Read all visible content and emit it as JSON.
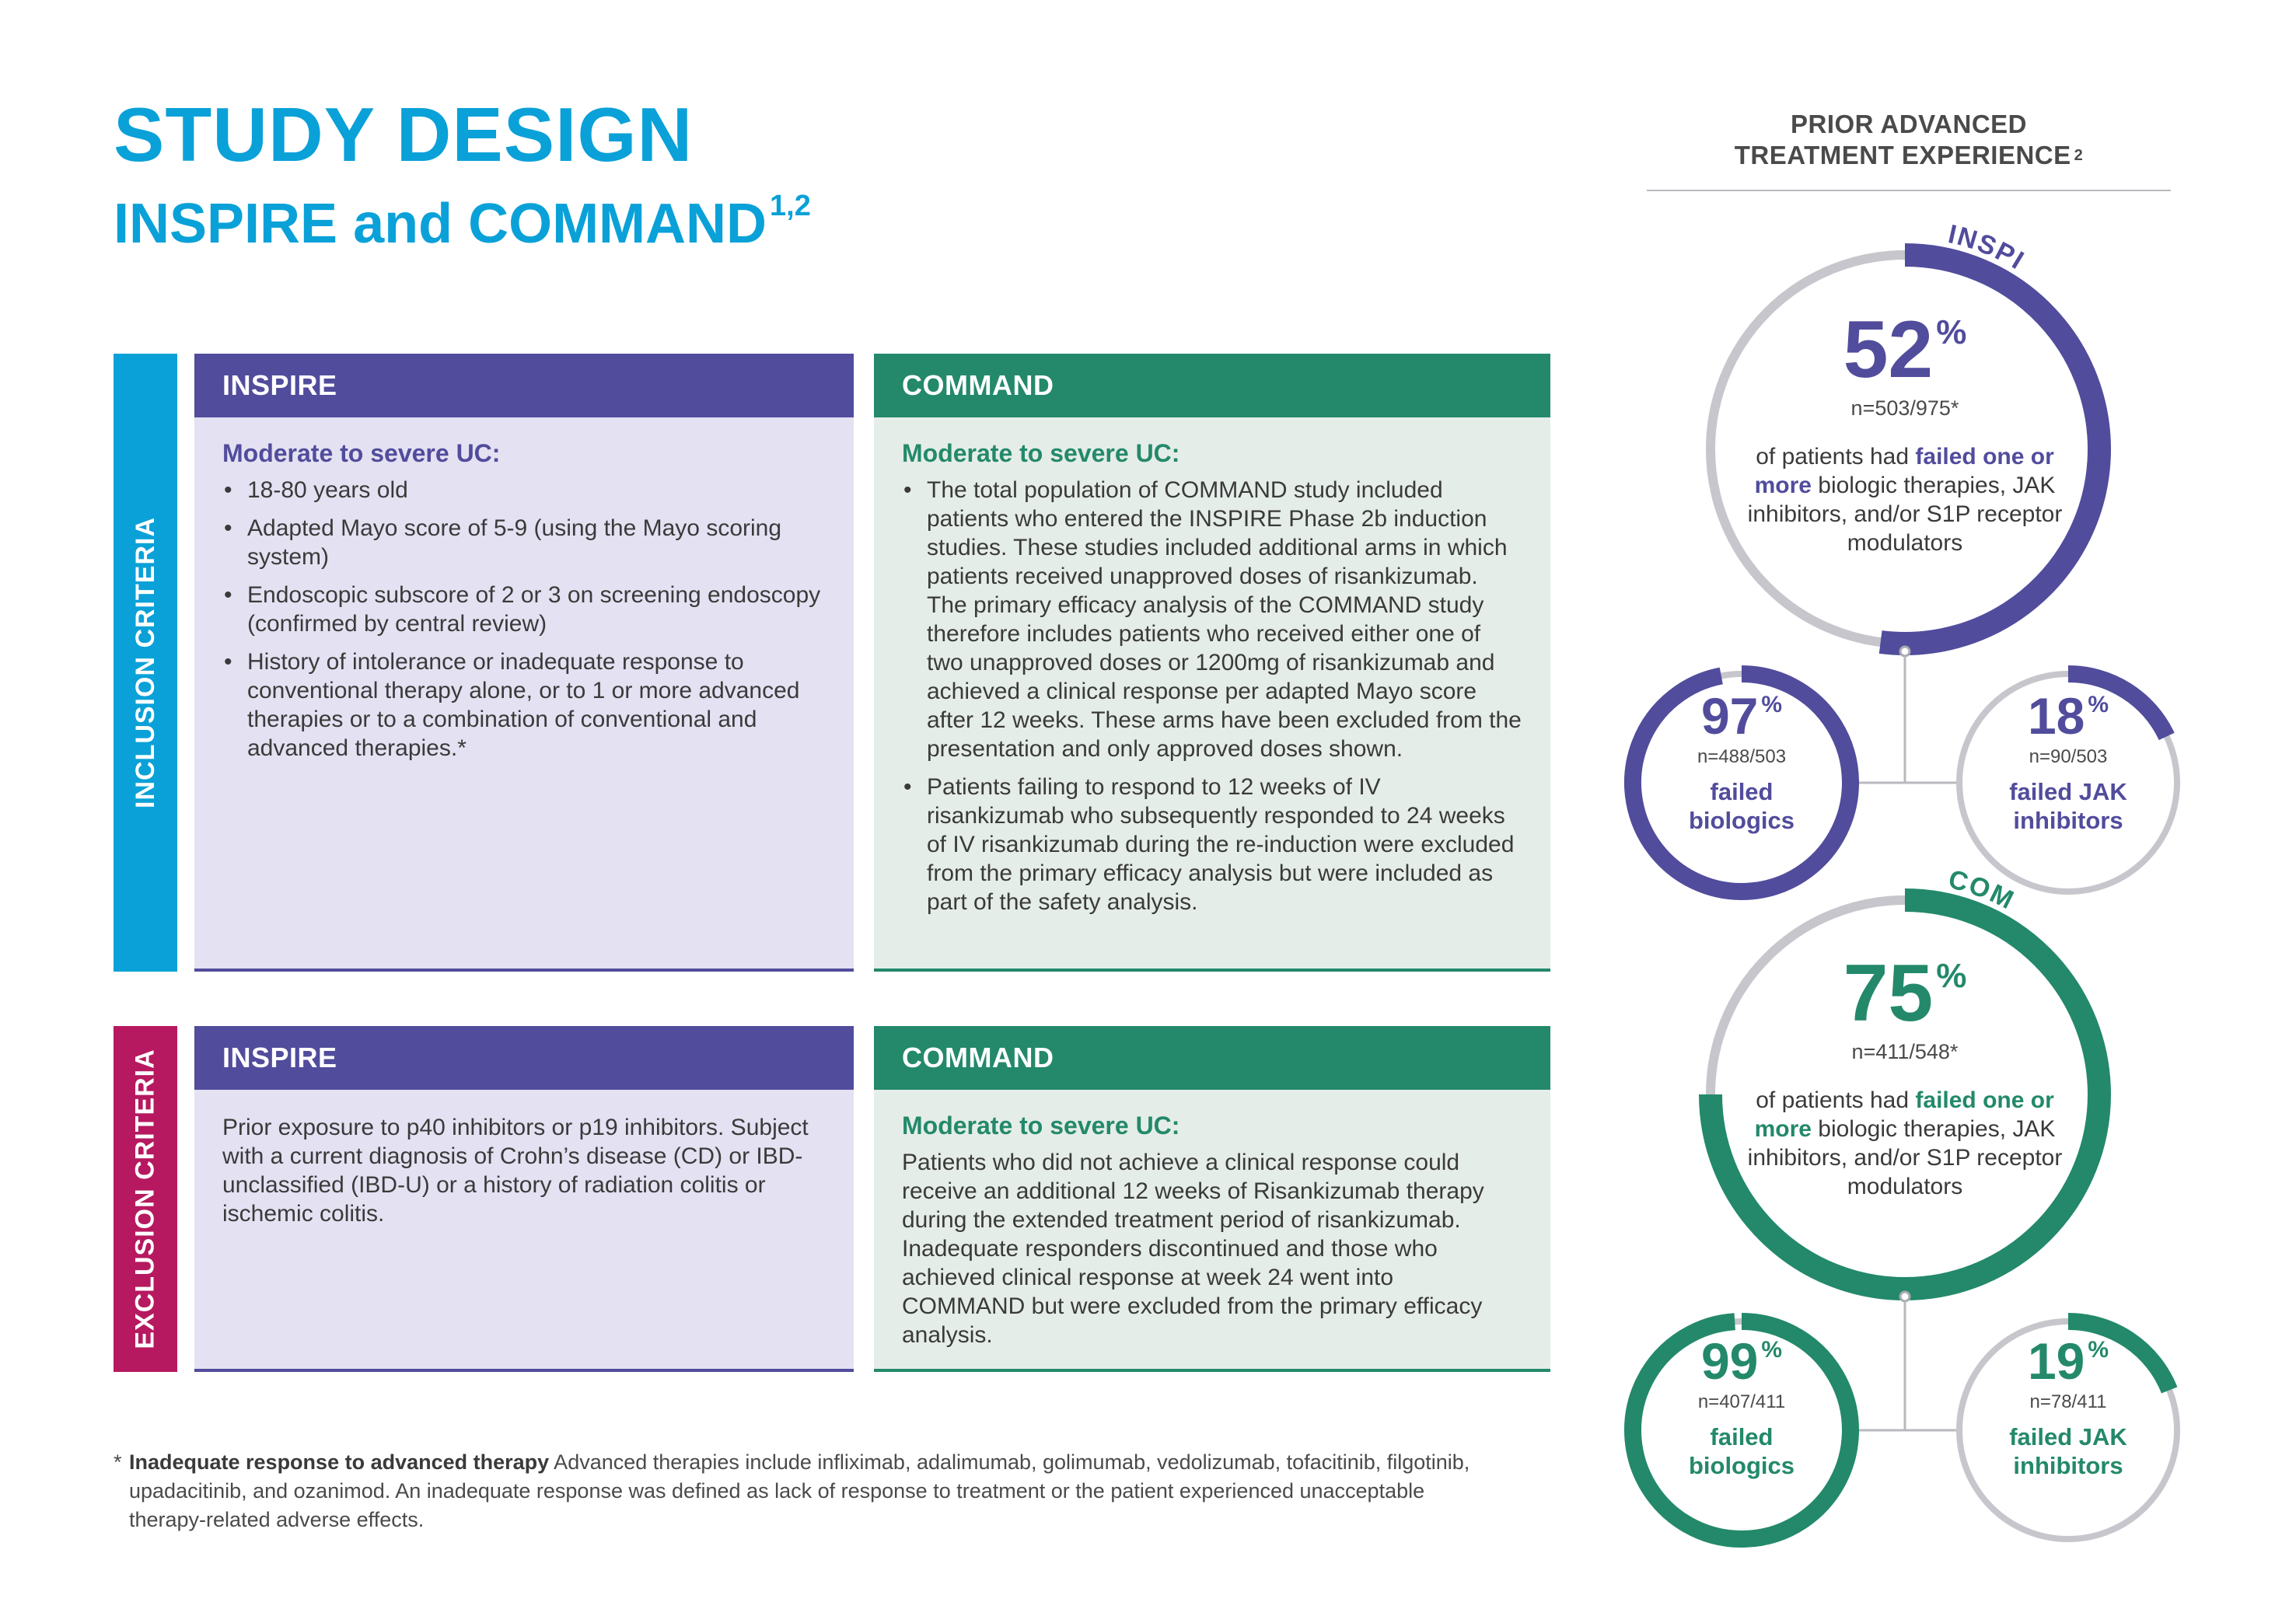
{
  "header": {
    "title": "STUDY DESIGN",
    "subtitle": "INSPIRE and COMMAND",
    "subtitle_refs": "1,2"
  },
  "inclusion": {
    "label": "INCLUSION CRITERIA",
    "inspire": {
      "head": "INSPIRE",
      "subhead": "Moderate to severe UC:",
      "bullets": [
        "18-80 years old",
        "Adapted Mayo score of 5-9 (using the Mayo scoring system)",
        "Endoscopic subscore of 2 or 3 on screening endoscopy (confirmed by central review)",
        "History of intolerance or inadequate response to conventional therapy alone, or to 1 or more advanced therapies or to a combination of conventional and advanced therapies.*"
      ]
    },
    "command": {
      "head": "COMMAND",
      "subhead": "Moderate to severe UC:",
      "bullets": [
        "The total population of COMMAND study included patients who entered the INSPIRE Phase 2b induction studies. These studies included additional arms in which patients received unapproved doses of risankizumab. The primary efficacy analysis of the COMMAND study therefore includes patients who received either one of two unapproved doses or 1200mg of risankizumab and achieved a clinical response per adapted Mayo score after 12 weeks. These arms have been excluded from the presentation and only approved doses shown.",
        "Patients failing to respond to 12 weeks of IV risankizumab who subsequently responded to 24 weeks of IV risankizumab during the re-induction were excluded from the primary efficacy analysis but were included as part of the safety analysis."
      ]
    }
  },
  "exclusion": {
    "label": "EXCLUSION CRITERIA",
    "inspire": {
      "head": "INSPIRE",
      "text": "Prior exposure to p40 inhibitors or p19 inhibitors. Subject with a current diagnosis of Crohn’s disease (CD) or IBD-unclassified (IBD-U) or a history of radiation colitis or ischemic colitis."
    },
    "command": {
      "head": "COMMAND",
      "subhead": "Moderate to severe UC:",
      "text": "Patients who did not achieve a clinical response could receive an additional 12 weeks of Risankizumab therapy during the extended treatment period of risankizumab. Inadequate responders discontinued and those who achieved clinical response at week 24 went into COMMAND but were excluded from the primary efficacy analysis."
    }
  },
  "footnote": {
    "marker": "*",
    "bold": "Inadequate response to advanced therapy",
    "text": " Advanced therapies include infliximab, adalimumab, golimumab, vedolizumab, tofacitinib, filgotinib, upadacitinib, and ozanimod. An inadequate response was defined as lack of response to treatment or the patient experienced unacceptable therapy-related adverse effects."
  },
  "prior_experience": {
    "title_line1": "PRIOR ADVANCED",
    "title_line2": "TREATMENT EXPERIENCE",
    "title_ref": "2",
    "colors": {
      "inspire": "#514c9c",
      "command": "#23896a",
      "track": "#c6c6cc"
    },
    "inspire": {
      "label": "INSPIRE",
      "main": {
        "value": "52",
        "unit": "%",
        "fraction": 0.52,
        "n": "n=503/975*",
        "desc_pre": "of patients had ",
        "desc_bold": "failed one or more",
        "desc_post": " biologic therapies, JAK inhibitors, and/or S1P receptor modulators"
      },
      "biologics": {
        "value": "97",
        "unit": "%",
        "fraction": 0.97,
        "n": "n=488/503",
        "label_1": "failed",
        "label_2": "biologics"
      },
      "jak": {
        "value": "18",
        "unit": "%",
        "fraction": 0.18,
        "n": "n=90/503",
        "label_1": "failed JAK",
        "label_2": "inhibitors"
      }
    },
    "command": {
      "label": "COMMAND",
      "main": {
        "value": "75",
        "unit": "%",
        "fraction": 0.75,
        "n": "n=411/548*",
        "desc_pre": "of patients had ",
        "desc_bold": "failed one or more",
        "desc_post": " biologic therapies, JAK inhibitors, and/or S1P receptor modulators"
      },
      "biologics": {
        "value": "99",
        "unit": "%",
        "fraction": 0.99,
        "n": "n=407/411",
        "label_1": "failed",
        "label_2": "biologics"
      },
      "jak": {
        "value": "19",
        "unit": "%",
        "fraction": 0.19,
        "n": "n=78/411",
        "label_1": "failed JAK",
        "label_2": "inhibitors"
      }
    }
  }
}
